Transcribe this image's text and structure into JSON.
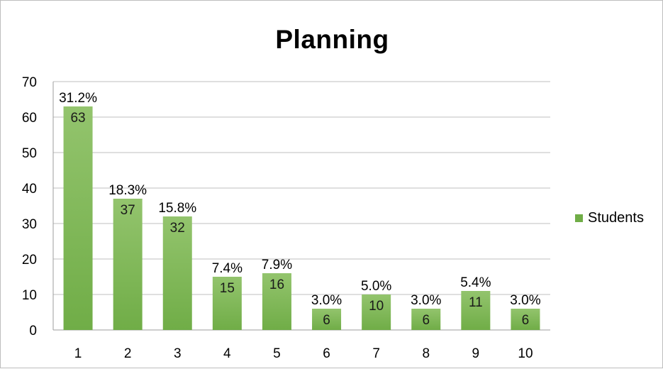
{
  "chart_data": {
    "type": "bar",
    "title": "Planning",
    "xlabel": "",
    "ylabel": "",
    "categories": [
      "1",
      "2",
      "3",
      "4",
      "5",
      "6",
      "7",
      "8",
      "9",
      "10"
    ],
    "series": [
      {
        "name": "Students",
        "values": [
          63,
          37,
          32,
          15,
          16,
          6,
          10,
          6,
          11,
          6
        ],
        "percent_labels": [
          "31.2%",
          "18.3%",
          "15.8%",
          "7.4%",
          "7.9%",
          "3.0%",
          "5.0%",
          "3.0%",
          "5.4%",
          "3.0%"
        ]
      }
    ],
    "ylim": [
      0,
      70
    ],
    "yticks": [
      0,
      10,
      20,
      30,
      40,
      50,
      60,
      70
    ],
    "grid": true,
    "legend_position": "right",
    "bar_color": "#70ad47",
    "bar_color_light": "#93c46d",
    "gridline_color": "#bfbfbf"
  }
}
